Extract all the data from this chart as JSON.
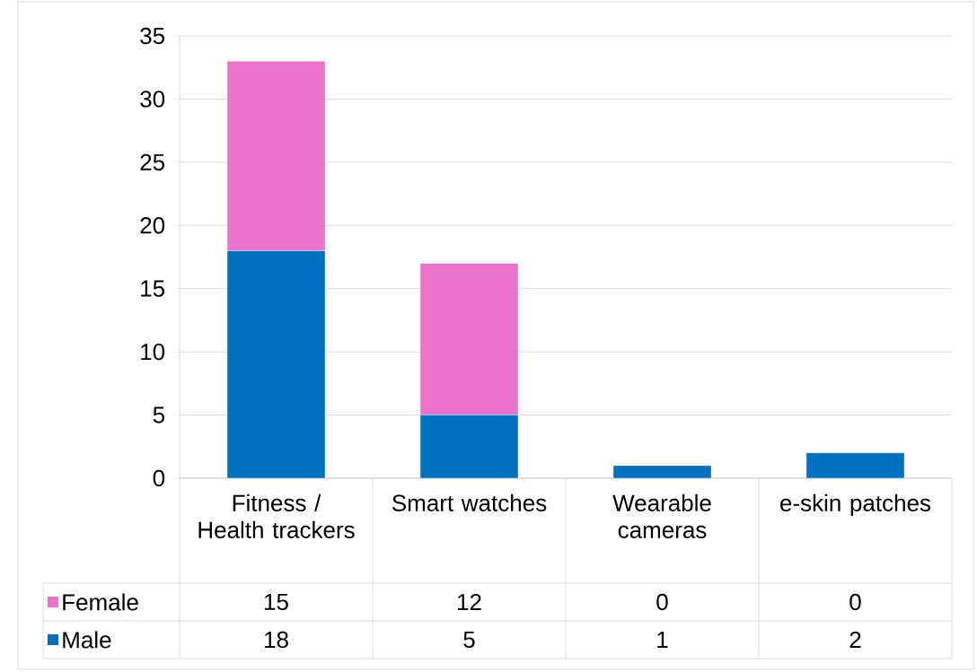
{
  "chart_data": {
    "type": "bar",
    "stacked": true,
    "categories": [
      "Fitness / Health trackers",
      "Smart watches",
      "Wearable cameras",
      "e-skin patches"
    ],
    "series": [
      {
        "name": "Male",
        "color": "#0070c0",
        "values": [
          18,
          5,
          1,
          2
        ]
      },
      {
        "name": "Female",
        "color": "#e973c8",
        "values": [
          15,
          12,
          0,
          0
        ]
      }
    ],
    "ylim": [
      0,
      35
    ],
    "yticks": [
      0,
      5,
      10,
      15,
      20,
      25,
      30,
      35
    ],
    "grid": "y",
    "legend": "bottom left",
    "data_labels": true
  }
}
